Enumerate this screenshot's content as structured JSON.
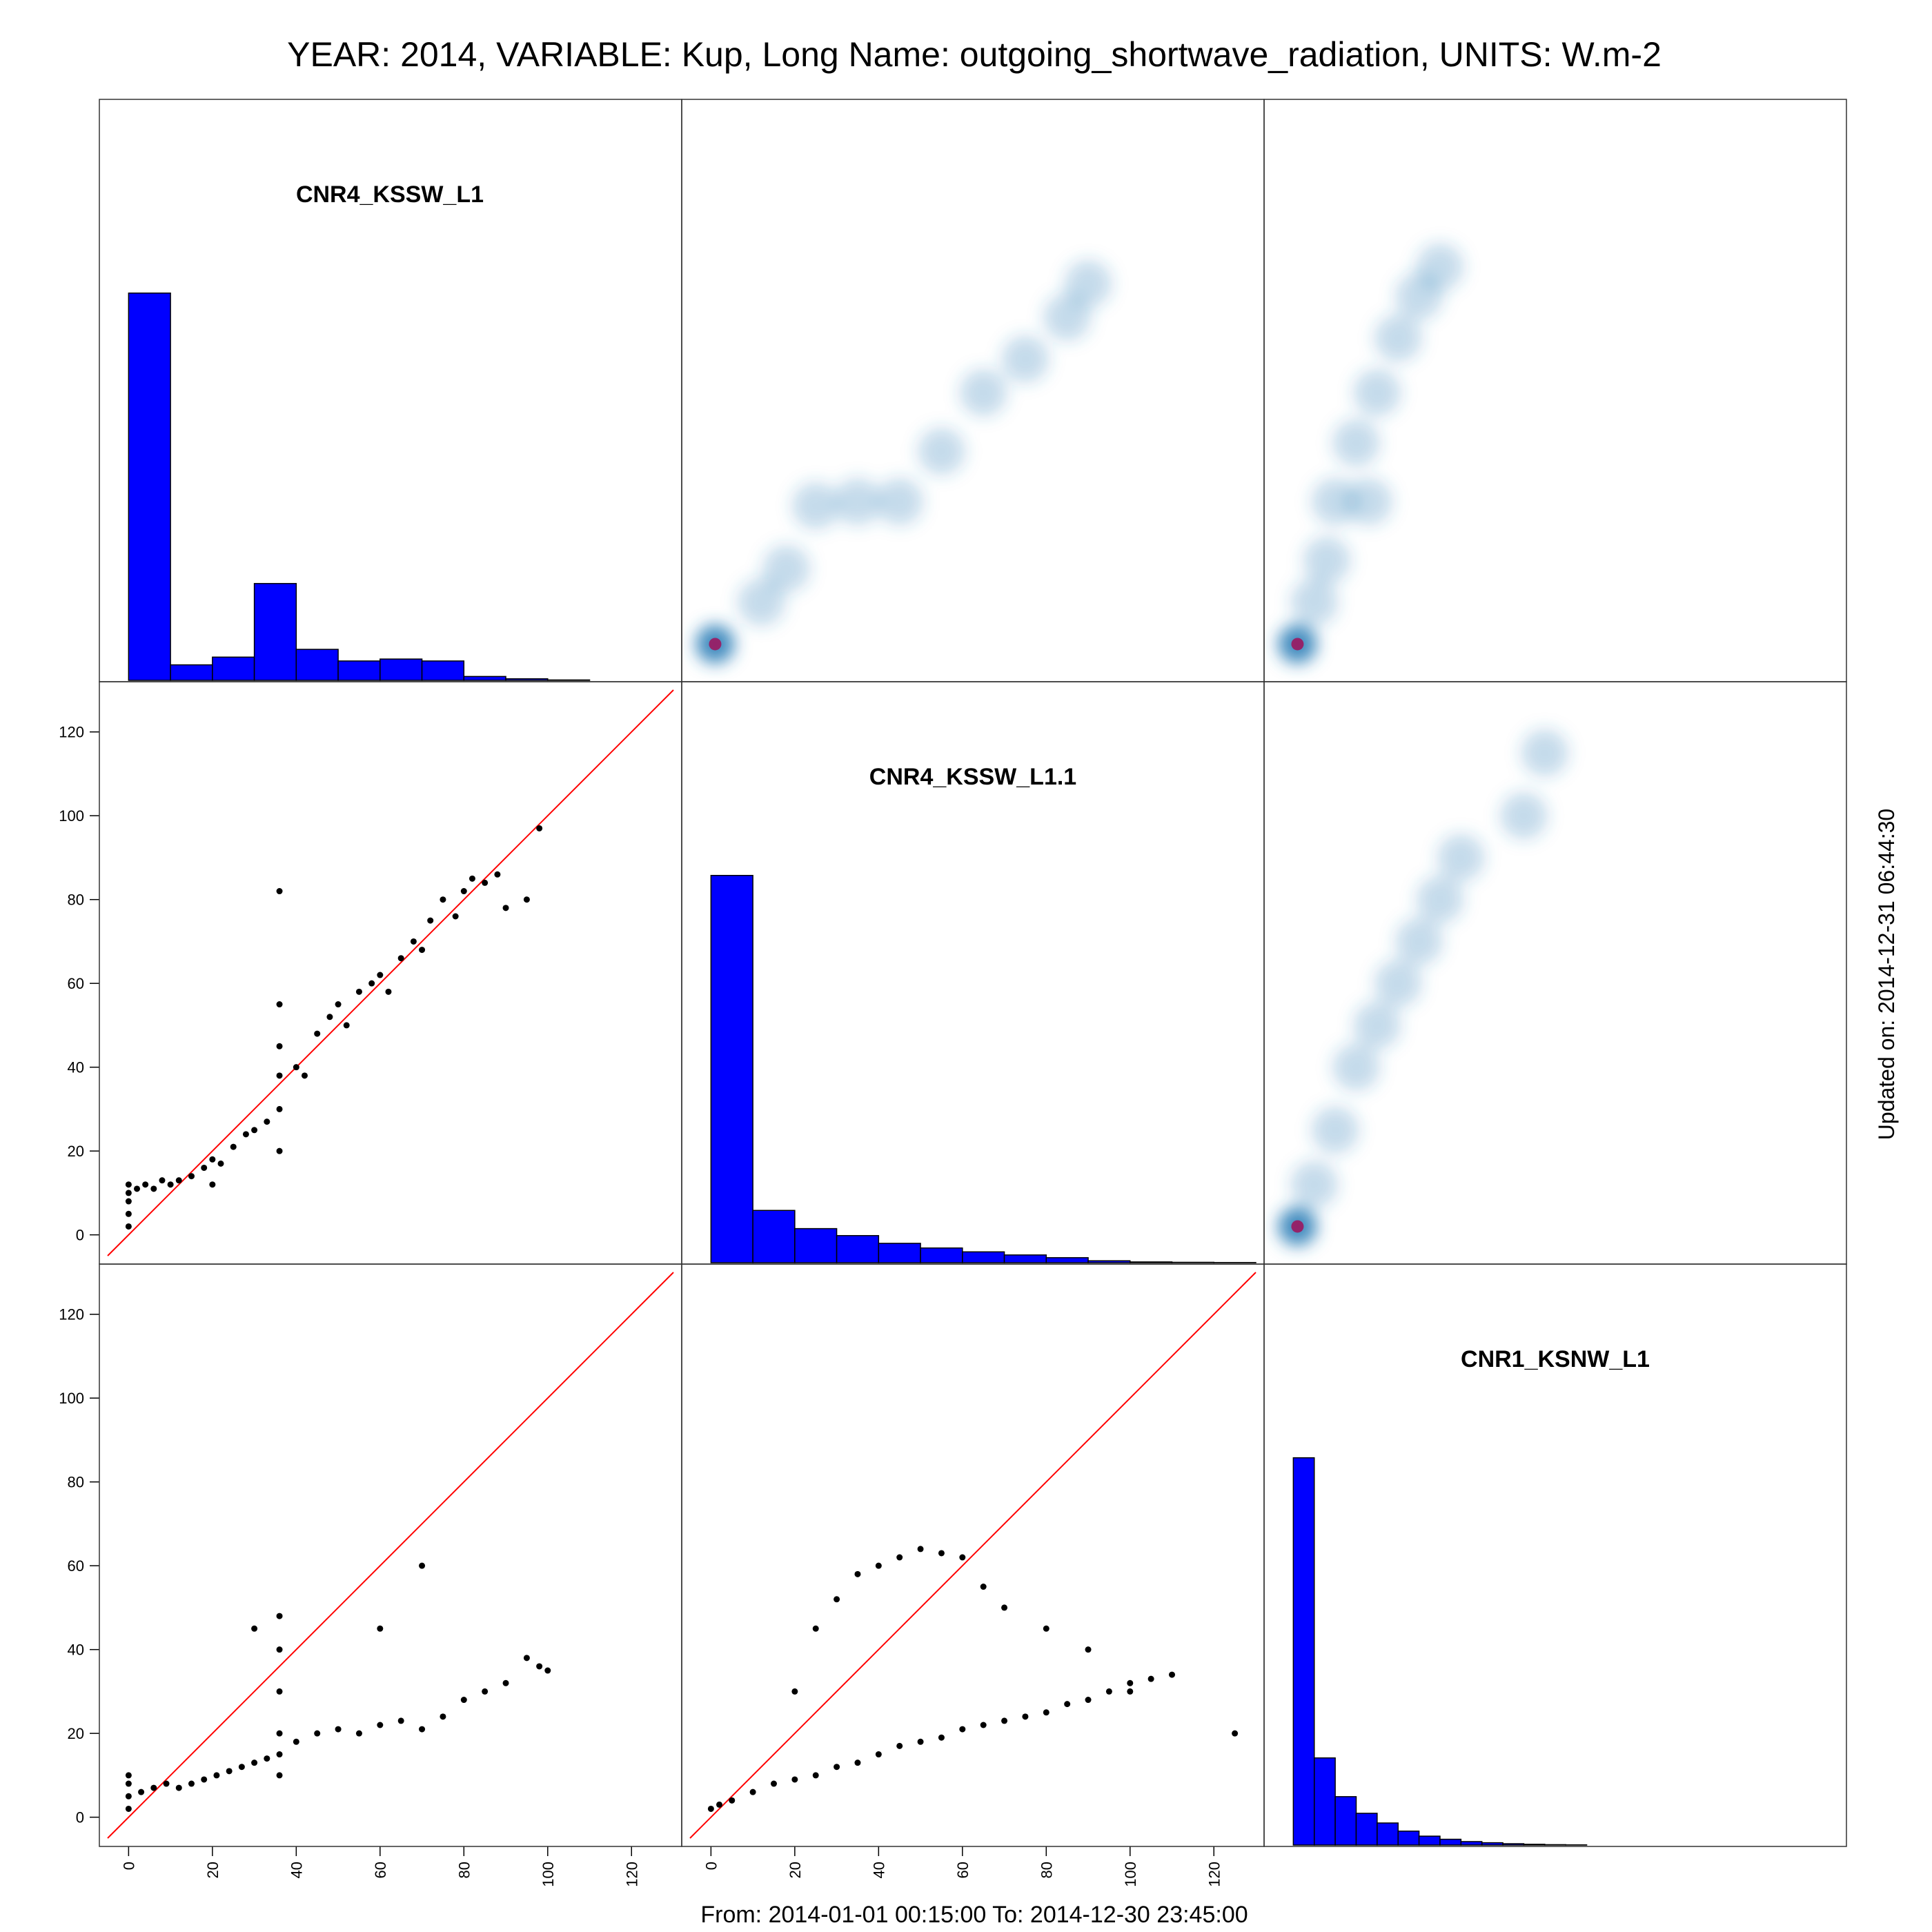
{
  "title": "YEAR: 2014, VARIABLE: Kup, Long Name: outgoing_shortwave_radiation, UNITS: W.m-2",
  "footer": "From: 2014-01-01 00:15:00 To: 2014-12-30 23:45:00",
  "side_note": "Updated on: 2014-12-31 06:44:30",
  "colors": {
    "hist_fill": "#0000ff",
    "identity_line": "#ff0000",
    "points": "#000000",
    "density": "#2c7fb8",
    "density_peak": "#a0105a"
  },
  "chart_data": {
    "type": "scatter",
    "layout": "scatterplot-matrix",
    "axis_range": [
      -5,
      130
    ],
    "ticks": [
      0,
      20,
      40,
      60,
      80,
      100,
      120
    ],
    "tick_labels": [
      "0",
      "20",
      "40",
      "60",
      "80",
      "100",
      "120"
    ],
    "identity_line": true,
    "variables": [
      "CNR4_KSSW_L1",
      "CNR4_KSSW_L1.1",
      "CNR1_KSNW_L1"
    ],
    "histograms": [
      {
        "variable": "CNR4_KSSW_L1",
        "bin_edges": [
          0,
          10,
          20,
          30,
          40,
          50,
          60,
          70,
          80,
          90,
          100,
          110
        ],
        "counts": [
          100,
          4,
          6,
          25,
          8,
          5,
          5.5,
          5,
          1,
          0.4,
          0.1
        ]
      },
      {
        "variable": "CNR4_KSSW_L1.1",
        "bin_edges": [
          0,
          10,
          20,
          30,
          40,
          50,
          60,
          70,
          80,
          90,
          100,
          110,
          120,
          130
        ],
        "counts": [
          100,
          13.5,
          8.8,
          7,
          5,
          3.8,
          2.8,
          2,
          1.3,
          0.5,
          0.2,
          0.1,
          0.05
        ]
      },
      {
        "variable": "CNR1_KSNW_L1",
        "bin_edges": [
          0,
          5,
          10,
          15,
          20,
          25,
          30,
          35,
          40,
          45,
          50,
          55,
          60,
          65,
          70
        ],
        "counts": [
          100,
          22.5,
          12.5,
          8.2,
          5.7,
          3.6,
          2.3,
          1.5,
          0.9,
          0.6,
          0.35,
          0.2,
          0.1,
          0.05
        ]
      }
    ],
    "panels": [
      {
        "row": 2,
        "col": 1,
        "x_variable": "CNR4_KSSW_L1",
        "y_variable": "CNR4_KSSW_L1.1",
        "style": "points",
        "points": [
          [
            0,
            2
          ],
          [
            0,
            5
          ],
          [
            0,
            8
          ],
          [
            0,
            10
          ],
          [
            0,
            12
          ],
          [
            2,
            11
          ],
          [
            4,
            12
          ],
          [
            6,
            11
          ],
          [
            8,
            13
          ],
          [
            10,
            12
          ],
          [
            12,
            13
          ],
          [
            15,
            14
          ],
          [
            18,
            16
          ],
          [
            20,
            18
          ],
          [
            22,
            17
          ],
          [
            25,
            21
          ],
          [
            28,
            24
          ],
          [
            30,
            25
          ],
          [
            33,
            27
          ],
          [
            36,
            20
          ],
          [
            36,
            30
          ],
          [
            36,
            38
          ],
          [
            36,
            45
          ],
          [
            36,
            55
          ],
          [
            40,
            40
          ],
          [
            42,
            38
          ],
          [
            45,
            48
          ],
          [
            48,
            52
          ],
          [
            50,
            55
          ],
          [
            52,
            50
          ],
          [
            55,
            58
          ],
          [
            58,
            60
          ],
          [
            60,
            62
          ],
          [
            62,
            58
          ],
          [
            65,
            66
          ],
          [
            68,
            70
          ],
          [
            70,
            68
          ],
          [
            72,
            75
          ],
          [
            75,
            80
          ],
          [
            78,
            76
          ],
          [
            80,
            82
          ],
          [
            82,
            85
          ],
          [
            85,
            84
          ],
          [
            88,
            86
          ],
          [
            90,
            78
          ],
          [
            95,
            80
          ],
          [
            98,
            97
          ],
          [
            36,
            82
          ],
          [
            20,
            12
          ]
        ]
      },
      {
        "row": 3,
        "col": 1,
        "x_variable": "CNR4_KSSW_L1",
        "y_variable": "CNR1_KSNW_L1",
        "style": "points",
        "points": [
          [
            0,
            2
          ],
          [
            0,
            5
          ],
          [
            0,
            8
          ],
          [
            0,
            10
          ],
          [
            3,
            6
          ],
          [
            6,
            7
          ],
          [
            9,
            8
          ],
          [
            12,
            7
          ],
          [
            15,
            8
          ],
          [
            18,
            9
          ],
          [
            21,
            10
          ],
          [
            24,
            11
          ],
          [
            27,
            12
          ],
          [
            30,
            13
          ],
          [
            33,
            14
          ],
          [
            36,
            10
          ],
          [
            36,
            15
          ],
          [
            36,
            20
          ],
          [
            36,
            30
          ],
          [
            36,
            40
          ],
          [
            36,
            48
          ],
          [
            40,
            18
          ],
          [
            45,
            20
          ],
          [
            50,
            21
          ],
          [
            55,
            20
          ],
          [
            60,
            22
          ],
          [
            65,
            23
          ],
          [
            70,
            21
          ],
          [
            75,
            24
          ],
          [
            80,
            28
          ],
          [
            85,
            30
          ],
          [
            90,
            32
          ],
          [
            95,
            38
          ],
          [
            98,
            36
          ],
          [
            70,
            60
          ],
          [
            30,
            45
          ],
          [
            60,
            45
          ],
          [
            100,
            35
          ]
        ]
      },
      {
        "row": 3,
        "col": 2,
        "x_variable": "CNR4_KSSW_L1.1",
        "y_variable": "CNR1_KSNW_L1",
        "style": "points",
        "points": [
          [
            0,
            2
          ],
          [
            2,
            3
          ],
          [
            5,
            4
          ],
          [
            10,
            6
          ],
          [
            15,
            8
          ],
          [
            20,
            9
          ],
          [
            25,
            10
          ],
          [
            30,
            12
          ],
          [
            35,
            13
          ],
          [
            40,
            15
          ],
          [
            45,
            17
          ],
          [
            50,
            18
          ],
          [
            55,
            19
          ],
          [
            60,
            21
          ],
          [
            65,
            22
          ],
          [
            70,
            23
          ],
          [
            75,
            24
          ],
          [
            80,
            25
          ],
          [
            85,
            27
          ],
          [
            90,
            28
          ],
          [
            95,
            30
          ],
          [
            100,
            32
          ],
          [
            105,
            33
          ],
          [
            110,
            34
          ],
          [
            125,
            20
          ],
          [
            20,
            30
          ],
          [
            25,
            45
          ],
          [
            30,
            52
          ],
          [
            35,
            58
          ],
          [
            40,
            60
          ],
          [
            45,
            62
          ],
          [
            50,
            64
          ],
          [
            55,
            63
          ],
          [
            60,
            62
          ],
          [
            65,
            55
          ],
          [
            70,
            50
          ],
          [
            80,
            45
          ],
          [
            90,
            40
          ],
          [
            100,
            30
          ]
        ]
      },
      {
        "row": 1,
        "col": 2,
        "x_variable": "CNR4_KSSW_L1.1",
        "y_variable": "CNR4_KSSW_L1",
        "style": "smoothed-density",
        "points": [
          [
            1,
            2
          ],
          [
            12,
            12
          ],
          [
            18,
            20
          ],
          [
            25,
            35
          ],
          [
            35,
            36
          ],
          [
            45,
            36
          ],
          [
            55,
            48
          ],
          [
            65,
            62
          ],
          [
            75,
            70
          ],
          [
            85,
            80
          ],
          [
            90,
            88
          ]
        ]
      },
      {
        "row": 1,
        "col": 3,
        "x_variable": "CNR1_KSNW_L1",
        "y_variable": "CNR4_KSSW_L1",
        "style": "smoothed-density",
        "points": [
          [
            1,
            2
          ],
          [
            5,
            12
          ],
          [
            8,
            22
          ],
          [
            10,
            36
          ],
          [
            18,
            36
          ],
          [
            15,
            50
          ],
          [
            20,
            62
          ],
          [
            25,
            75
          ],
          [
            30,
            85
          ],
          [
            35,
            92
          ]
        ]
      },
      {
        "row": 2,
        "col": 3,
        "x_variable": "CNR1_KSNW_L1",
        "y_variable": "CNR4_KSSW_L1.1",
        "style": "smoothed-density",
        "points": [
          [
            1,
            2
          ],
          [
            5,
            12
          ],
          [
            10,
            25
          ],
          [
            15,
            40
          ],
          [
            20,
            50
          ],
          [
            25,
            60
          ],
          [
            30,
            70
          ],
          [
            35,
            80
          ],
          [
            40,
            90
          ],
          [
            55,
            100
          ],
          [
            60,
            115
          ]
        ]
      }
    ]
  }
}
